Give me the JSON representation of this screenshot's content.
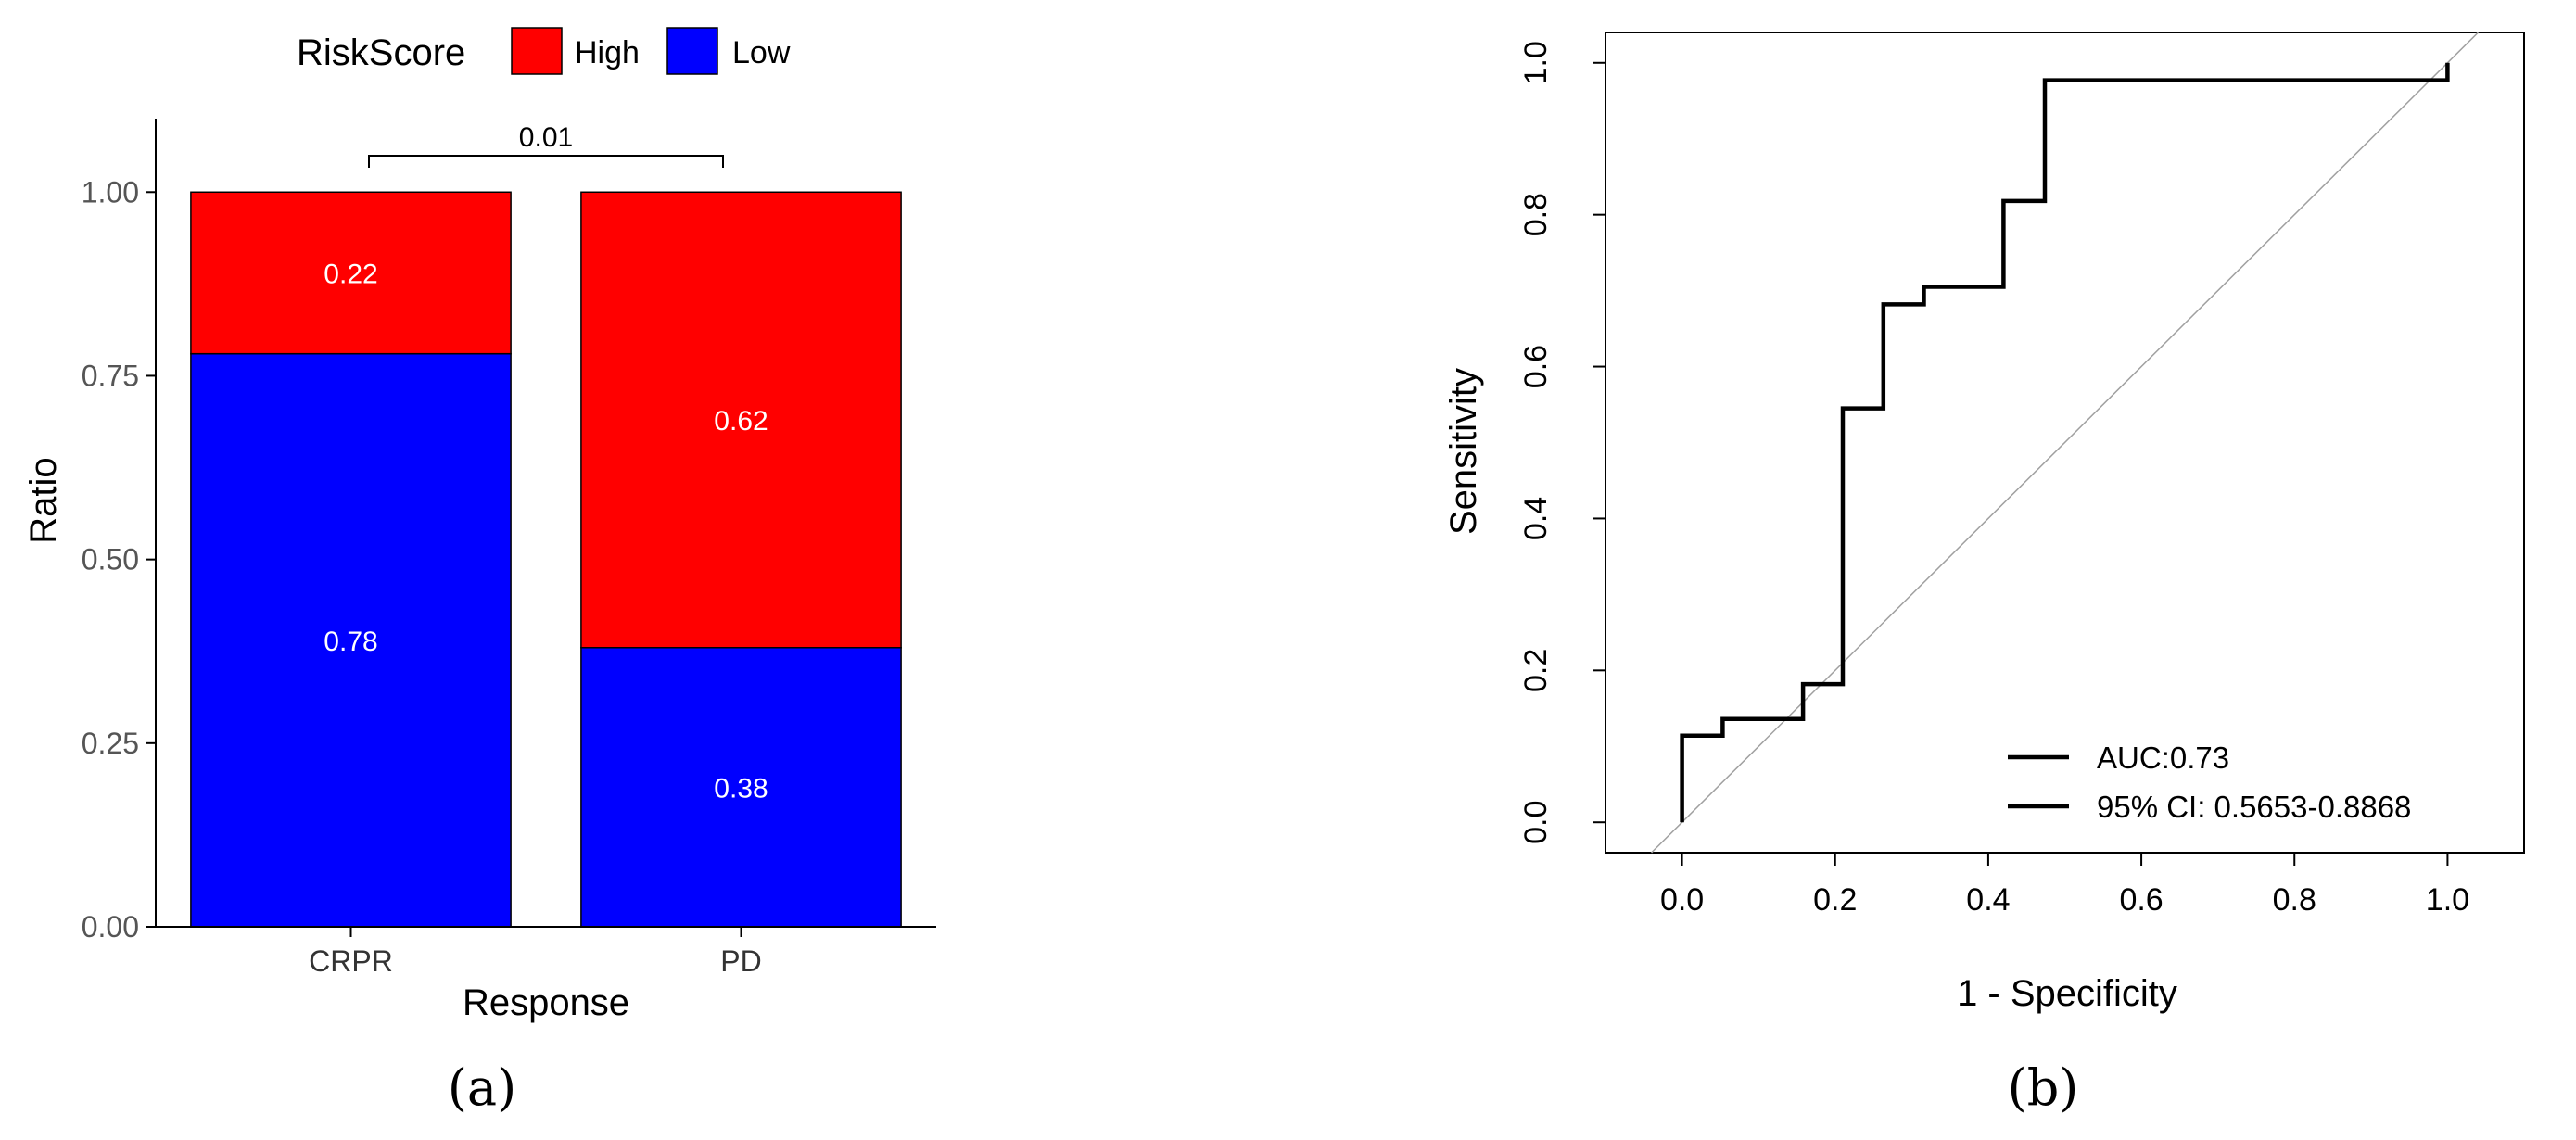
{
  "chart_data": [
    {
      "panel_label": "(a)",
      "type": "bar",
      "stacked": true,
      "categories": [
        "CRPR",
        "PD"
      ],
      "series": [
        {
          "name": "Low",
          "color": "#0000FF",
          "values": [
            0.78,
            0.38
          ],
          "labels": [
            "0.78",
            "0.38"
          ]
        },
        {
          "name": "High",
          "color": "#FF0000",
          "values": [
            0.22,
            0.62
          ],
          "labels": [
            "0.22",
            "0.62"
          ]
        }
      ],
      "legend": {
        "title": "RiskScore",
        "placement": "top",
        "entries": [
          "High",
          "Low"
        ]
      },
      "xlabel": "Response",
      "ylabel": "Ratio",
      "ylim": [
        0,
        1.1
      ],
      "yticks": [
        0,
        0.25,
        0.5,
        0.75,
        1.0
      ],
      "ytick_labels": [
        "0.00",
        "0.25",
        "0.50",
        "0.75",
        "1.00"
      ],
      "annotation": {
        "text": "0.01",
        "between": [
          "CRPR",
          "PD"
        ],
        "y": 1.05
      },
      "grid": false
    },
    {
      "panel_label": "(b)",
      "type": "line",
      "xlabel": "1 - Specificity",
      "ylabel": "Sensitivity",
      "xlim": [
        -0.1,
        1.1
      ],
      "ylim": [
        -0.04,
        1.04
      ],
      "xticks": [
        0,
        0.2,
        0.4,
        0.6,
        0.8,
        1.0
      ],
      "xtick_labels": [
        "0.0",
        "0.2",
        "0.4",
        "0.6",
        "0.8",
        "1.0"
      ],
      "yticks": [
        0,
        0.2,
        0.4,
        0.6,
        0.8,
        1.0
      ],
      "ytick_labels": [
        "0.0",
        "0.2",
        "0.4",
        "0.6",
        "0.8",
        "1.0"
      ],
      "series": [
        {
          "color": "#000000",
          "x": [
            0,
            0,
            0.053,
            0.053,
            0.158,
            0.158,
            0.21,
            0.21,
            0.263,
            0.263,
            0.316,
            0.316,
            0.42,
            0.42,
            0.474,
            0.474,
            1.0,
            1.0
          ],
          "y": [
            0,
            0.114,
            0.114,
            0.136,
            0.136,
            0.182,
            0.182,
            0.545,
            0.545,
            0.682,
            0.682,
            0.705,
            0.705,
            0.818,
            0.818,
            0.977,
            0.977,
            1.0
          ]
        }
      ],
      "reference_line": {
        "color": "#A0A0A0",
        "x": [
          -0.04,
          1.04
        ],
        "y": [
          -0.04,
          1.04
        ]
      },
      "legend": {
        "placement": "bottom-right",
        "entries": [
          "AUC:0.73",
          "95% CI: 0.5653-0.8868"
        ]
      },
      "grid": false
    }
  ]
}
